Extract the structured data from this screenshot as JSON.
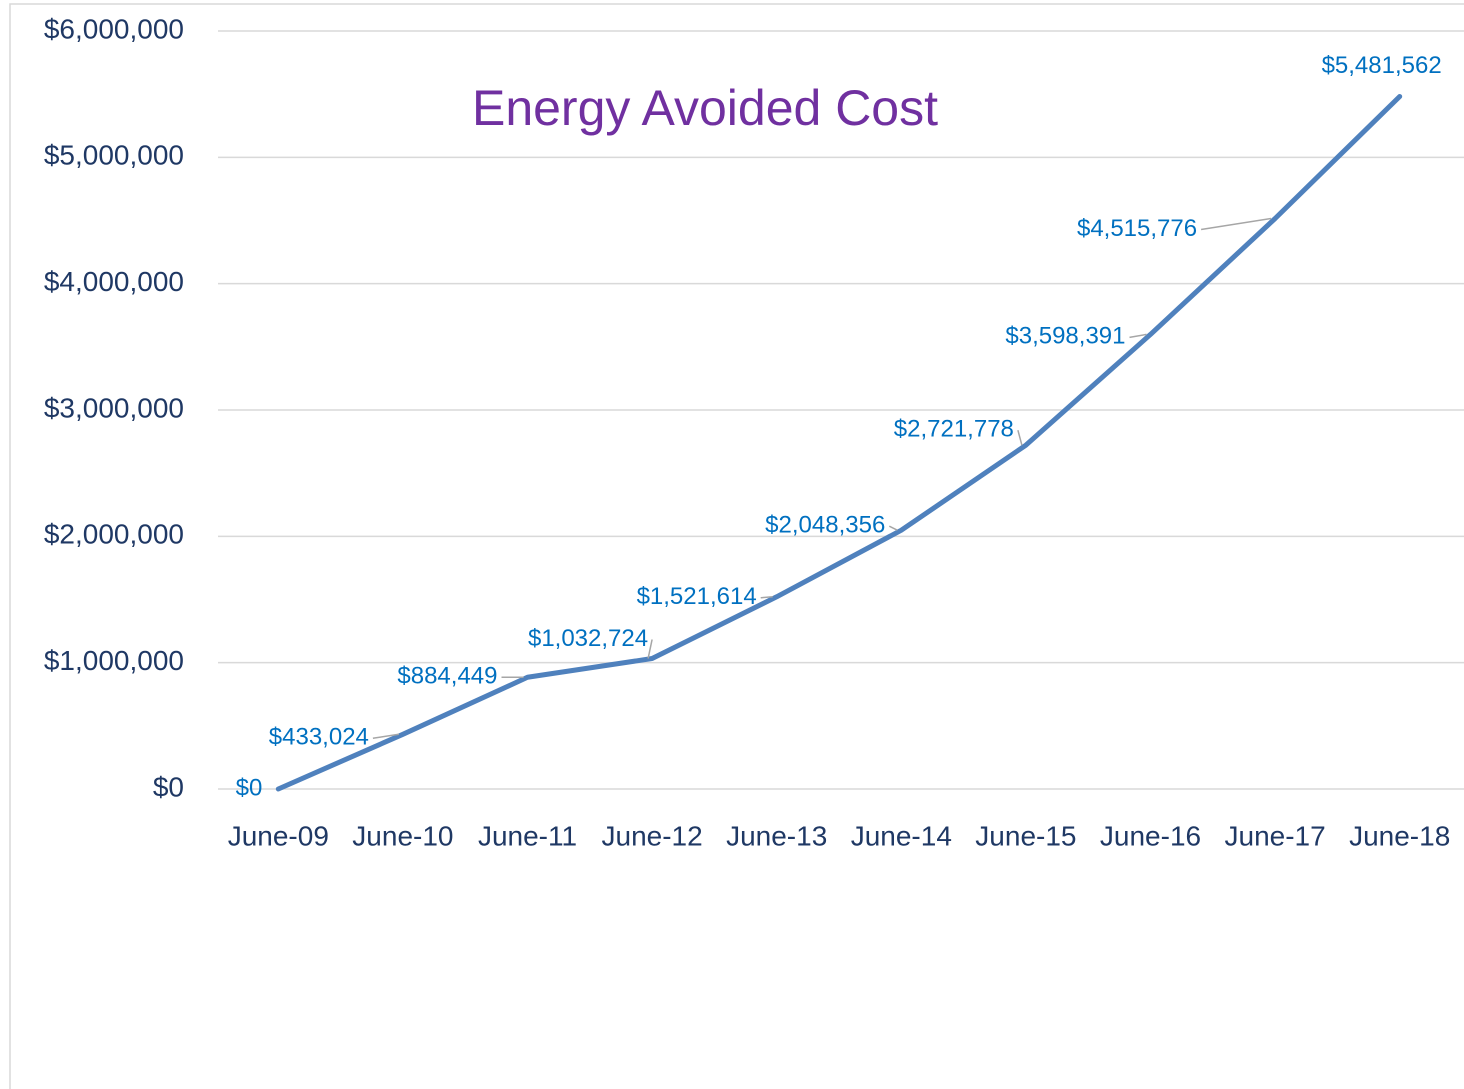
{
  "chart_data": {
    "type": "line",
    "title": "Energy Avoided Cost",
    "categories": [
      "June-09",
      "June-10",
      "June-11",
      "June-12",
      "June-13",
      "June-14",
      "June-15",
      "June-16",
      "June-17",
      "June-18"
    ],
    "series": [
      {
        "name": "Energy Avoided Cost",
        "color": "#4f81bd",
        "values": [
          0,
          433024,
          884449,
          1032724,
          1521614,
          2048356,
          2721778,
          3598391,
          4515776,
          5481562
        ],
        "value_labels": [
          "$0",
          "$433,024",
          "$884,449",
          "$1,032,724",
          "$1,521,614",
          "$2,048,356",
          "$2,721,778",
          "$3,598,391",
          "$4,515,776",
          "$5,481,562"
        ]
      }
    ],
    "ylim": [
      0,
      6000000
    ],
    "yticks": [
      {
        "value": 0,
        "label": "$0"
      },
      {
        "value": 1000000,
        "label": "$1,000,000"
      },
      {
        "value": 2000000,
        "label": "$2,000,000"
      },
      {
        "value": 3000000,
        "label": "$3,000,000"
      },
      {
        "value": 4000000,
        "label": "$4,000,000"
      },
      {
        "value": 5000000,
        "label": "$5,000,000"
      },
      {
        "value": 6000000,
        "label": "$6,000,000"
      }
    ],
    "grid": true
  }
}
